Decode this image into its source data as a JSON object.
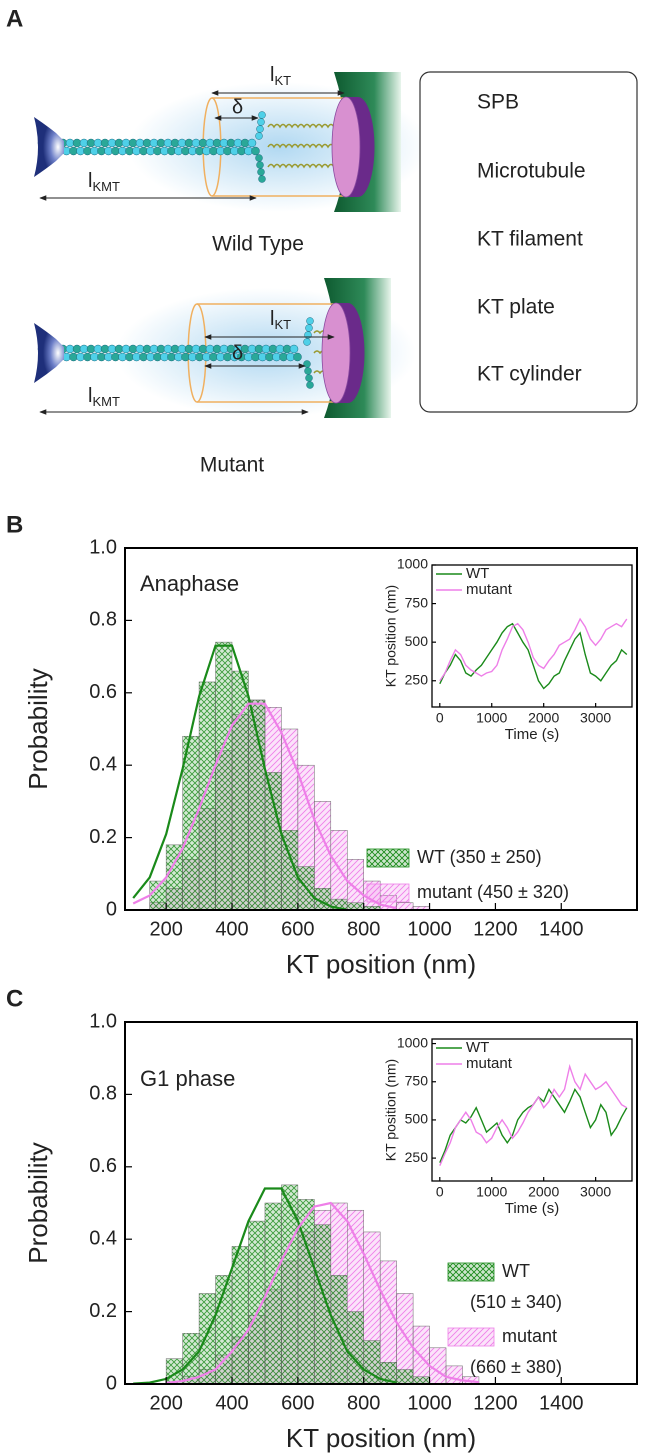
{
  "diagram": {
    "label": "A",
    "l": "l",
    "kt": "KT",
    "kmt": "KMT",
    "delta": "δ",
    "wild_type_caption": "Wild Type",
    "mutant_caption": "Mutant",
    "legend": [
      "SPB",
      "Microtubule",
      "KT filament",
      "KT plate",
      "KT cylinder"
    ]
  },
  "chart_data": [
    {
      "type": "histogram",
      "label": "B",
      "annotation": "Anaphase",
      "xlabel": "KT position (nm)",
      "ylabel": "Probability",
      "xlim": [
        75,
        1630
      ],
      "ylim": [
        0,
        1
      ],
      "xticks": [
        200,
        400,
        600,
        800,
        1000,
        1200,
        1400
      ],
      "yticks": [
        0,
        0.2,
        0.4,
        0.6,
        0.8,
        {
          "value": 1,
          "label": "1.0"
        }
      ],
      "series": [
        {
          "name": "WT (350 ± 250)",
          "color": "#1a8a1a",
          "hatch": "cross",
          "bins": [
            150,
            200,
            250,
            300,
            350,
            400,
            450,
            500,
            550,
            600,
            650,
            700,
            750,
            800,
            850
          ],
          "values": [
            0.08,
            0.18,
            0.48,
            0.63,
            0.74,
            0.66,
            0.58,
            0.38,
            0.22,
            0.12,
            0.06,
            0.03,
            0.02,
            0.01
          ],
          "fit": {
            "x": [
              100,
              150,
              200,
              250,
              300,
              350,
              400,
              450,
              500,
              550,
              600,
              650,
              700,
              750
            ],
            "values": [
              0.033,
              0.09,
              0.21,
              0.39,
              0.59,
              0.73,
              0.73,
              0.59,
              0.39,
              0.21,
              0.09,
              0.033,
              0.01,
              0
            ]
          }
        },
        {
          "name": "mutant (450 ± 320)",
          "color": "#ee7fe8",
          "hatch": "diagonal",
          "bins": [
            150,
            200,
            250,
            300,
            350,
            400,
            450,
            500,
            550,
            600,
            650,
            700,
            750,
            800,
            850,
            900,
            950,
            1000
          ],
          "values": [
            0.02,
            0.06,
            0.14,
            0.28,
            0.44,
            0.54,
            0.58,
            0.56,
            0.5,
            0.4,
            0.3,
            0.22,
            0.14,
            0.08,
            0.04,
            0.02,
            0.01
          ],
          "fit": {
            "x": [
              100,
              150,
              200,
              250,
              300,
              350,
              400,
              450,
              500,
              550,
              600,
              650,
              700,
              750,
              800,
              850,
              900
            ],
            "values": [
              0.018,
              0.04,
              0.09,
              0.17,
              0.28,
              0.4,
              0.51,
              0.57,
              0.57,
              0.49,
              0.38,
              0.25,
              0.15,
              0.08,
              0.04,
              0.015,
              0.005
            ]
          }
        }
      ]
    },
    {
      "type": "line",
      "xlabel": "Time (s)",
      "ylabel": "KT position (nm)",
      "xlim": [
        -150,
        3700
      ],
      "ylim": [
        80,
        1000
      ],
      "xticks": [
        0,
        1000,
        2000,
        3000
      ],
      "yticks": [
        250,
        500,
        750,
        1000
      ],
      "x": [
        0,
        100,
        200,
        300,
        400,
        500,
        600,
        700,
        800,
        900,
        1000,
        1100,
        1200,
        1300,
        1400,
        1500,
        1600,
        1700,
        1800,
        1900,
        2000,
        2100,
        2200,
        2300,
        2400,
        2500,
        2600,
        2700,
        2800,
        2900,
        3000,
        3100,
        3200,
        3300,
        3400,
        3500,
        3600
      ],
      "series": [
        {
          "name": "WT",
          "color": "#1a8a1a",
          "values": [
            230,
            300,
            350,
            420,
            380,
            300,
            280,
            320,
            350,
            400,
            450,
            500,
            560,
            600,
            620,
            560,
            500,
            450,
            350,
            250,
            200,
            230,
            280,
            300,
            380,
            450,
            520,
            560,
            420,
            300,
            280,
            250,
            300,
            350,
            380,
            450,
            420
          ]
        },
        {
          "name": "mutant",
          "color": "#ee7fe8",
          "values": [
            250,
            300,
            380,
            450,
            420,
            350,
            320,
            300,
            280,
            300,
            310,
            350,
            450,
            520,
            600,
            620,
            580,
            500,
            400,
            350,
            330,
            380,
            420,
            480,
            500,
            520,
            580,
            650,
            600,
            520,
            480,
            520,
            580,
            600,
            620,
            600,
            650
          ]
        }
      ]
    },
    {
      "type": "histogram",
      "label": "C",
      "annotation": "G1  phase",
      "xlabel": "KT position (nm)",
      "ylabel": "Probability",
      "xlim": [
        75,
        1630
      ],
      "ylim": [
        0,
        1
      ],
      "xticks": [
        200,
        400,
        600,
        800,
        1000,
        1200,
        1400
      ],
      "yticks": [
        0,
        0.2,
        0.4,
        0.6,
        0.8,
        {
          "value": 1,
          "label": "1.0"
        }
      ],
      "series": [
        {
          "name": "WT",
          "note": "(510 ± 340)",
          "color": "#1a8a1a",
          "hatch": "cross",
          "bins": [
            200,
            250,
            300,
            350,
            400,
            450,
            500,
            550,
            600,
            650,
            700,
            750,
            800,
            850,
            900,
            950,
            1000
          ],
          "values": [
            0.07,
            0.14,
            0.25,
            0.3,
            0.38,
            0.45,
            0.5,
            0.55,
            0.51,
            0.44,
            0.3,
            0.2,
            0.12,
            0.06,
            0.04,
            0.02
          ],
          "fit": {
            "x": [
              100,
              150,
              200,
              250,
              300,
              350,
              400,
              450,
              500,
              550,
              600,
              650,
              700,
              750,
              800,
              850,
              900
            ],
            "values": [
              0.001,
              0.004,
              0.014,
              0.04,
              0.09,
              0.19,
              0.32,
              0.45,
              0.54,
              0.54,
              0.45,
              0.32,
              0.19,
              0.09,
              0.04,
              0.014,
              0.004
            ]
          }
        },
        {
          "name": "mutant",
          "note": "(660 ± 380)",
          "color": "#ee7fe8",
          "hatch": "diagonal",
          "bins": [
            250,
            300,
            350,
            400,
            450,
            500,
            550,
            600,
            650,
            700,
            750,
            800,
            850,
            900,
            950,
            1000,
            1050,
            1100,
            1150
          ],
          "values": [
            0.02,
            0.04,
            0.08,
            0.13,
            0.19,
            0.26,
            0.34,
            0.42,
            0.48,
            0.5,
            0.48,
            0.42,
            0.34,
            0.25,
            0.16,
            0.1,
            0.05,
            0.02
          ],
          "fit": {
            "x": [
              200,
              250,
              300,
              350,
              400,
              450,
              500,
              550,
              600,
              650,
              700,
              750,
              800,
              850,
              900,
              950,
              1000,
              1050,
              1100,
              1150
            ],
            "values": [
              0.003,
              0.008,
              0.02,
              0.04,
              0.09,
              0.15,
              0.24,
              0.34,
              0.43,
              0.49,
              0.5,
              0.45,
              0.36,
              0.26,
              0.17,
              0.1,
              0.05,
              0.02,
              0.01,
              0.005
            ]
          }
        }
      ]
    },
    {
      "type": "line",
      "xlabel": "Time (s)",
      "ylabel": "KT position (nm)",
      "xlim": [
        -150,
        3700
      ],
      "ylim": [
        100,
        1030
      ],
      "xticks": [
        0,
        1000,
        2000,
        3000
      ],
      "yticks": [
        250,
        500,
        750,
        1000
      ],
      "x": [
        0,
        100,
        200,
        300,
        400,
        500,
        600,
        700,
        800,
        900,
        1000,
        1100,
        1200,
        1300,
        1400,
        1500,
        1600,
        1700,
        1800,
        1900,
        2000,
        2100,
        2200,
        2300,
        2400,
        2500,
        2600,
        2700,
        2800,
        2900,
        3000,
        3100,
        3200,
        3300,
        3400,
        3500,
        3600
      ],
      "series": [
        {
          "name": "WT",
          "color": "#1a8a1a",
          "values": [
            220,
            300,
            400,
            450,
            500,
            480,
            520,
            580,
            500,
            420,
            450,
            480,
            400,
            350,
            400,
            500,
            550,
            580,
            600,
            650,
            620,
            700,
            650,
            600,
            550,
            620,
            700,
            650,
            550,
            450,
            500,
            600,
            550,
            400,
            450,
            520,
            580
          ]
        },
        {
          "name": "mutant",
          "color": "#ee7fe8",
          "values": [
            200,
            280,
            350,
            450,
            500,
            550,
            500,
            420,
            400,
            350,
            380,
            450,
            500,
            450,
            380,
            420,
            480,
            550,
            600,
            650,
            580,
            620,
            700,
            650,
            700,
            850,
            750,
            700,
            800,
            750,
            700,
            720,
            750,
            700,
            650,
            600,
            580
          ]
        }
      ]
    }
  ]
}
